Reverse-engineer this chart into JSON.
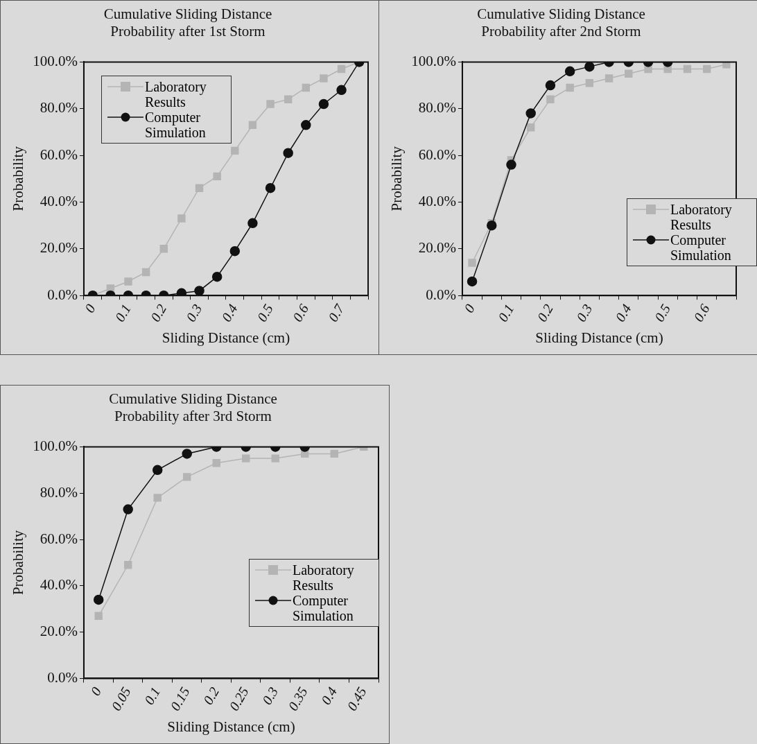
{
  "chart_data": [
    {
      "type": "line",
      "title": "Cumulative Sliding Distance\nProbability after 1st Storm",
      "xlabel": "Sliding Distance (cm)",
      "ylabel": "Probability",
      "categories": [
        "0",
        null,
        "0.1",
        null,
        "0.2",
        null,
        "0.3",
        null,
        "0.4",
        null,
        "0.5",
        null,
        "0.6",
        null,
        "0.7",
        null
      ],
      "series": [
        {
          "name": "Laboratory Results",
          "color": "#b4b4b4",
          "marker": "square",
          "values": [
            0,
            3,
            6,
            10,
            20,
            33,
            46,
            51,
            62,
            73,
            82,
            84,
            89,
            93,
            97,
            100
          ]
        },
        {
          "name": "Computer Simulation",
          "color": "#111111",
          "marker": "circle",
          "values": [
            0,
            0,
            0,
            0,
            0,
            1,
            2,
            8,
            19,
            31,
            46,
            61,
            73,
            82,
            88,
            100
          ]
        }
      ],
      "ylim": [
        0,
        100
      ],
      "yticks": [
        {
          "value": 0,
          "label": "0.0%"
        },
        {
          "value": 20,
          "label": "20.0%"
        },
        {
          "value": 40,
          "label": "40.0%"
        },
        {
          "value": 60,
          "label": "60.0%"
        },
        {
          "value": 80,
          "label": "80.0%"
        },
        {
          "value": 100,
          "label": "100.0%"
        }
      ],
      "grid": false,
      "legend": "top left"
    },
    {
      "type": "line",
      "title": "Cumulative Sliding Distance\nProbability after 2nd Storm",
      "xlabel": "Sliding Distance (cm)",
      "ylabel": "Probability",
      "categories": [
        "0",
        null,
        "0.1",
        null,
        "0.2",
        null,
        "0.3",
        null,
        "0.4",
        null,
        "0.5",
        null,
        "0.6",
        null
      ],
      "series": [
        {
          "name": "Laboratory Results",
          "color": "#b4b4b4",
          "marker": "square",
          "values": [
            14,
            31,
            58,
            72,
            84,
            89,
            91,
            93,
            95,
            97,
            97,
            97,
            97,
            99
          ]
        },
        {
          "name": "Computer Simulation",
          "color": "#111111",
          "marker": "circle",
          "values": [
            6,
            30,
            56,
            78,
            90,
            96,
            98,
            100,
            100,
            100,
            100,
            null,
            null,
            null
          ]
        }
      ],
      "ylim": [
        0,
        100
      ],
      "yticks": [
        {
          "value": 0,
          "label": "0.0%"
        },
        {
          "value": 20,
          "label": "20.0%"
        },
        {
          "value": 40,
          "label": "40.0%"
        },
        {
          "value": 60,
          "label": "60.0%"
        },
        {
          "value": 80,
          "label": "80.0%"
        },
        {
          "value": 100,
          "label": "100.0%"
        }
      ],
      "grid": false,
      "legend": "bottom right"
    },
    {
      "type": "line",
      "title": "Cumulative Sliding Distance\nProbability after 3rd Storm",
      "xlabel": "Sliding Distance (cm)",
      "ylabel": "Probability",
      "categories": [
        "0",
        "0.05",
        "0.1",
        "0.15",
        "0.2",
        "0.25",
        "0.3",
        "0.35",
        "0.4",
        "0.45"
      ],
      "series": [
        {
          "name": "Laboratory Results",
          "color": "#b4b4b4",
          "marker": "square",
          "values": [
            27,
            49,
            78,
            87,
            93,
            95,
            95,
            97,
            97,
            100
          ]
        },
        {
          "name": "Computer Simulation",
          "color": "#111111",
          "marker": "circle",
          "values": [
            34,
            73,
            90,
            97,
            100,
            100,
            100,
            100,
            null,
            null
          ]
        }
      ],
      "ylim": [
        0,
        100
      ],
      "yticks": [
        {
          "value": 0,
          "label": "0.0%"
        },
        {
          "value": 20,
          "label": "20.0%"
        },
        {
          "value": 40,
          "label": "40.0%"
        },
        {
          "value": 60,
          "label": "60.0%"
        },
        {
          "value": 80,
          "label": "80.0%"
        },
        {
          "value": 100,
          "label": "100.0%"
        }
      ],
      "grid": false,
      "legend": "bottom right"
    }
  ]
}
